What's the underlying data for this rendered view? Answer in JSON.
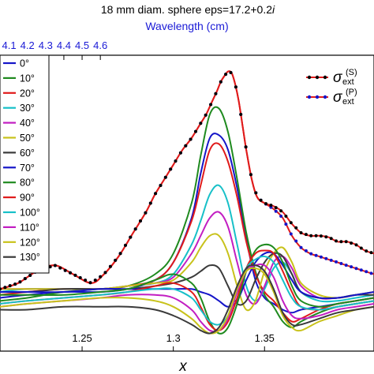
{
  "chart_data": {
    "type": "line",
    "title": "18 mm diam. sphere eps=17.2+0.2i",
    "title_main": "18 mm diam. sphere eps=17.2+0.2",
    "title_italic": "i",
    "xlabel": "x",
    "top_xlabel": "Wavelength (cm)",
    "xlim": [
      1.205,
      1.41
    ],
    "ylim": [
      0,
      1
    ],
    "x_ticks": [
      {
        "value": 1.25,
        "label": "1.25"
      },
      {
        "value": 1.3,
        "label": "1.3"
      },
      {
        "value": 1.35,
        "label": "1.35"
      }
    ],
    "top_ticks": [
      {
        "value": 4.1,
        "label": "4.1"
      },
      {
        "value": 4.2,
        "label": "4.2"
      },
      {
        "value": 4.3,
        "label": "4.3"
      },
      {
        "value": 4.4,
        "label": "4.4"
      },
      {
        "value": 4.5,
        "label": "4.5"
      },
      {
        "value": 4.6,
        "label": "4.6"
      }
    ],
    "grid": false,
    "angle_legend": {
      "placement": "left",
      "entries": [
        {
          "label": "0°",
          "color": "#1515c8"
        },
        {
          "label": "10°",
          "color": "#1f8a1f"
        },
        {
          "label": "20°",
          "color": "#e01b1b"
        },
        {
          "label": "30°",
          "color": "#17c0c8"
        },
        {
          "label": "40°",
          "color": "#c21ec2"
        },
        {
          "label": "50°",
          "color": "#c8c21a"
        },
        {
          "label": "60°",
          "color": "#3a3a3a"
        },
        {
          "label": "70°",
          "color": "#1515c8"
        },
        {
          "label": "80°",
          "color": "#1f8a1f"
        },
        {
          "label": "90°",
          "color": "#e01b1b"
        },
        {
          "label": "100°",
          "color": "#17c0c8"
        },
        {
          "label": "110°",
          "color": "#c21ec2"
        },
        {
          "label": "120°",
          "color": "#c8c21a"
        },
        {
          "label": "130°",
          "color": "#3a3a3a"
        }
      ]
    },
    "sigma_legend": {
      "placement": "top-right",
      "entries": [
        {
          "sub": "ext",
          "sup": "(S)",
          "line_color": "#e01b1b",
          "marker_color": "#000000"
        },
        {
          "sub": "ext",
          "sup": "(P)",
          "line_color": "#e01b1b",
          "marker_color": "#1515c8"
        }
      ]
    },
    "series_sigma": {
      "x": [
        1.205,
        1.215,
        1.225,
        1.235,
        1.245,
        1.255,
        1.262,
        1.27,
        1.278,
        1.285,
        1.29,
        1.295,
        1.3,
        1.305,
        1.31,
        1.315,
        1.318,
        1.321,
        1.324,
        1.326,
        1.328,
        1.33,
        1.332,
        1.334,
        1.336,
        1.338,
        1.34,
        1.343,
        1.346,
        1.35,
        1.355,
        1.36,
        1.365,
        1.37,
        1.375,
        1.38,
        1.385,
        1.39,
        1.395,
        1.4,
        1.405,
        1.41
      ],
      "S": [
        0.21,
        0.23,
        0.27,
        0.29,
        0.26,
        0.23,
        0.26,
        0.32,
        0.4,
        0.47,
        0.53,
        0.58,
        0.63,
        0.68,
        0.72,
        0.77,
        0.8,
        0.84,
        0.88,
        0.91,
        0.93,
        0.945,
        0.94,
        0.9,
        0.84,
        0.76,
        0.68,
        0.58,
        0.52,
        0.5,
        0.49,
        0.47,
        0.43,
        0.4,
        0.39,
        0.39,
        0.385,
        0.37,
        0.37,
        0.36,
        0.34,
        0.33
      ],
      "P": [
        0.21,
        0.23,
        0.27,
        0.29,
        0.26,
        0.23,
        0.26,
        0.32,
        0.4,
        0.47,
        0.53,
        0.58,
        0.63,
        0.68,
        0.72,
        0.77,
        0.8,
        0.84,
        0.88,
        0.91,
        0.93,
        0.945,
        0.94,
        0.9,
        0.84,
        0.76,
        0.68,
        0.58,
        0.52,
        0.5,
        0.48,
        0.45,
        0.39,
        0.35,
        0.33,
        0.32,
        0.31,
        0.3,
        0.29,
        0.28,
        0.27,
        0.26
      ]
    },
    "series_angles": {
      "x": [
        1.205,
        1.22,
        1.24,
        1.26,
        1.275,
        1.29,
        1.3,
        1.31,
        1.315,
        1.32,
        1.325,
        1.33,
        1.335,
        1.34,
        1.345,
        1.35,
        1.355,
        1.36,
        1.365,
        1.37,
        1.38,
        1.39,
        1.4,
        1.41
      ],
      "curves": [
        {
          "label": "0°",
          "color": "#1515c8",
          "values": [
            0.18,
            0.19,
            0.2,
            0.2,
            0.21,
            0.24,
            0.3,
            0.45,
            0.6,
            0.72,
            0.73,
            0.68,
            0.55,
            0.38,
            0.24,
            0.18,
            0.16,
            0.14,
            0.13,
            0.14,
            0.15,
            0.16,
            0.17,
            0.18
          ]
        },
        {
          "label": "10°",
          "color": "#1f8a1f",
          "values": [
            0.17,
            0.18,
            0.2,
            0.21,
            0.22,
            0.26,
            0.33,
            0.5,
            0.66,
            0.8,
            0.82,
            0.74,
            0.58,
            0.4,
            0.27,
            0.19,
            0.15,
            0.1,
            0.08,
            0.1,
            0.13,
            0.15,
            0.16,
            0.17
          ]
        },
        {
          "label": "20°",
          "color": "#e01b1b",
          "values": [
            0.19,
            0.2,
            0.21,
            0.21,
            0.22,
            0.24,
            0.3,
            0.44,
            0.56,
            0.68,
            0.7,
            0.64,
            0.52,
            0.37,
            0.26,
            0.2,
            0.17,
            0.13,
            0.1,
            0.11,
            0.14,
            0.16,
            0.17,
            0.18
          ]
        },
        {
          "label": "30°",
          "color": "#17c0c8",
          "values": [
            0.2,
            0.21,
            0.21,
            0.21,
            0.22,
            0.23,
            0.26,
            0.36,
            0.44,
            0.53,
            0.56,
            0.5,
            0.36,
            0.22,
            0.17,
            0.21,
            0.28,
            0.3,
            0.26,
            0.2,
            0.17,
            0.17,
            0.18,
            0.19
          ]
        },
        {
          "label": "40°",
          "color": "#c21ec2",
          "values": [
            0.21,
            0.21,
            0.21,
            0.21,
            0.22,
            0.23,
            0.25,
            0.33,
            0.39,
            0.45,
            0.47,
            0.42,
            0.3,
            0.19,
            0.16,
            0.22,
            0.3,
            0.32,
            0.28,
            0.22,
            0.18,
            0.18,
            0.19,
            0.2
          ]
        },
        {
          "label": "50°",
          "color": "#c8c21a",
          "values": [
            0.21,
            0.21,
            0.21,
            0.21,
            0.22,
            0.23,
            0.24,
            0.3,
            0.35,
            0.39,
            0.39,
            0.33,
            0.22,
            0.14,
            0.17,
            0.27,
            0.33,
            0.35,
            0.3,
            0.23,
            0.19,
            0.18,
            0.19,
            0.2
          ]
        },
        {
          "label": "60°",
          "color": "#3a3a3a",
          "values": [
            0.2,
            0.2,
            0.21,
            0.21,
            0.21,
            0.22,
            0.23,
            0.25,
            0.27,
            0.29,
            0.28,
            0.22,
            0.16,
            0.17,
            0.24,
            0.3,
            0.33,
            0.32,
            0.26,
            0.2,
            0.18,
            0.18,
            0.19,
            0.19
          ]
        },
        {
          "label": "70°",
          "color": "#1515c8",
          "values": [
            0.2,
            0.2,
            0.2,
            0.21,
            0.21,
            0.21,
            0.21,
            0.21,
            0.2,
            0.19,
            0.17,
            0.15,
            0.17,
            0.24,
            0.3,
            0.33,
            0.33,
            0.29,
            0.24,
            0.2,
            0.18,
            0.18,
            0.19,
            0.2
          ]
        },
        {
          "label": "80°",
          "color": "#1f8a1f",
          "values": [
            0.19,
            0.19,
            0.19,
            0.2,
            0.21,
            0.24,
            0.26,
            0.23,
            0.18,
            0.1,
            0.06,
            0.08,
            0.16,
            0.27,
            0.34,
            0.36,
            0.35,
            0.3,
            0.22,
            0.17,
            0.15,
            0.16,
            0.17,
            0.18
          ]
        },
        {
          "label": "90°",
          "color": "#e01b1b",
          "values": [
            0.16,
            0.17,
            0.18,
            0.19,
            0.2,
            0.22,
            0.23,
            0.2,
            0.15,
            0.09,
            0.07,
            0.1,
            0.18,
            0.28,
            0.33,
            0.34,
            0.33,
            0.27,
            0.2,
            0.15,
            0.14,
            0.15,
            0.16,
            0.17
          ]
        },
        {
          "label": "100°",
          "color": "#17c0c8",
          "values": [
            0.16,
            0.17,
            0.18,
            0.19,
            0.2,
            0.21,
            0.21,
            0.18,
            0.14,
            0.1,
            0.09,
            0.12,
            0.2,
            0.28,
            0.31,
            0.32,
            0.3,
            0.24,
            0.18,
            0.15,
            0.14,
            0.15,
            0.16,
            0.17
          ]
        },
        {
          "label": "110°",
          "color": "#c21ec2",
          "values": [
            0.15,
            0.16,
            0.17,
            0.18,
            0.19,
            0.19,
            0.18,
            0.14,
            0.1,
            0.07,
            0.07,
            0.11,
            0.2,
            0.27,
            0.29,
            0.29,
            0.25,
            0.17,
            0.12,
            0.11,
            0.12,
            0.14,
            0.15,
            0.16
          ]
        },
        {
          "label": "120°",
          "color": "#c8c21a",
          "values": [
            0.15,
            0.16,
            0.17,
            0.18,
            0.18,
            0.17,
            0.15,
            0.11,
            0.08,
            0.06,
            0.07,
            0.12,
            0.21,
            0.27,
            0.28,
            0.26,
            0.2,
            0.12,
            0.08,
            0.07,
            0.1,
            0.12,
            0.14,
            0.15
          ]
        },
        {
          "label": "130°",
          "color": "#3a3a3a",
          "values": [
            0.14,
            0.14,
            0.15,
            0.15,
            0.15,
            0.14,
            0.12,
            0.09,
            0.07,
            0.06,
            0.08,
            0.14,
            0.22,
            0.28,
            0.29,
            0.27,
            0.21,
            0.13,
            0.09,
            0.09,
            0.11,
            0.13,
            0.14,
            0.15
          ]
        }
      ]
    }
  }
}
